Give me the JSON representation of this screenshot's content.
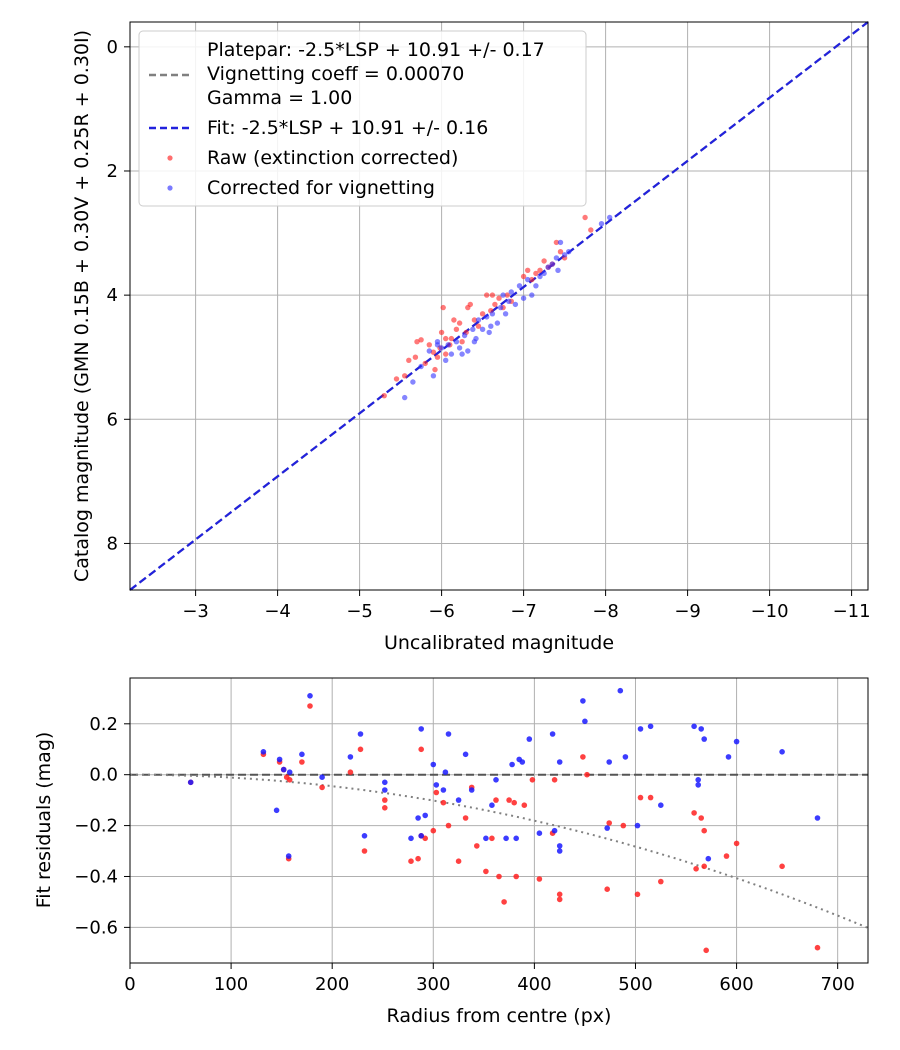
{
  "chart_data": [
    {
      "type": "scatter",
      "xlabel": "Uncalibrated magnitude",
      "ylabel": "Catalog magnitude (GMN 0.15B + 0.30V + 0.25R + 0.30I)",
      "xlim": [
        -2.2,
        -11.2
      ],
      "ylim": [
        8.75,
        -0.4
      ],
      "x_inverted": true,
      "y_inverted": true,
      "grid": true,
      "legend_position": "top-left",
      "xticks": [
        -3,
        -4,
        -5,
        -6,
        -7,
        -8,
        -9,
        -10,
        -11
      ],
      "xtick_labels": [
        "−3",
        "−4",
        "−5",
        "−6",
        "−7",
        "−8",
        "−9",
        "−10",
        "−11"
      ],
      "yticks": [
        0,
        2,
        4,
        6,
        8
      ],
      "ytick_labels": [
        "0",
        "2",
        "4",
        "6",
        "8"
      ],
      "legend": [
        {
          "label": "Platepar: -2.5*LSP + 10.91 +/- 0.17",
          "marker": "none"
        },
        {
          "label": "Vignetting coeff = 0.00070",
          "marker": "dash",
          "color": "#808080"
        },
        {
          "label": "Gamma = 1.00",
          "marker": "none"
        },
        {
          "label": "Fit: -2.5*LSP + 10.91 +/- 0.16",
          "marker": "dash",
          "color": "#2222dd"
        },
        {
          "label": "Raw (extinction corrected)",
          "marker": "dot",
          "color": "#ff2020"
        },
        {
          "label": "Corrected for vignetting",
          "marker": "dot",
          "color": "#3333ff"
        }
      ],
      "lines": [
        {
          "name": "Platepar",
          "x": [
            -2.2,
            -11.2
          ],
          "y": [
            8.75,
            -0.4
          ],
          "color": "#808080",
          "dash": true
        },
        {
          "name": "Fit",
          "x": [
            -2.2,
            -11.2
          ],
          "y": [
            8.75,
            -0.4
          ],
          "color": "#2222dd",
          "dash": true
        }
      ],
      "series": [
        {
          "name": "Raw (extinction corrected)",
          "color": "#ff2020",
          "points": [
            [
              -5.3,
              5.62
            ],
            [
              -5.45,
              5.35
            ],
            [
              -5.55,
              5.3
            ],
            [
              -5.6,
              5.05
            ],
            [
              -5.68,
              5.0
            ],
            [
              -5.7,
              4.75
            ],
            [
              -5.75,
              4.72
            ],
            [
              -5.8,
              5.1
            ],
            [
              -5.85,
              4.8
            ],
            [
              -5.9,
              4.92
            ],
            [
              -5.92,
              5.2
            ],
            [
              -5.98,
              4.85
            ],
            [
              -6.0,
              4.6
            ],
            [
              -6.02,
              4.2
            ],
            [
              -6.05,
              4.95
            ],
            [
              -6.1,
              4.8
            ],
            [
              -6.12,
              4.7
            ],
            [
              -6.15,
              4.4
            ],
            [
              -6.18,
              4.55
            ],
            [
              -6.22,
              4.45
            ],
            [
              -6.25,
              4.75
            ],
            [
              -6.3,
              4.6
            ],
            [
              -6.32,
              4.2
            ],
            [
              -6.35,
              4.15
            ],
            [
              -6.4,
              4.4
            ],
            [
              -6.45,
              4.5
            ],
            [
              -6.5,
              4.3
            ],
            [
              -6.55,
              4.0
            ],
            [
              -6.6,
              4.25
            ],
            [
              -6.62,
              4.0
            ],
            [
              -6.65,
              4.15
            ],
            [
              -6.7,
              4.05
            ],
            [
              -6.75,
              4.2
            ],
            [
              -6.8,
              4.0
            ],
            [
              -6.85,
              4.1
            ],
            [
              -7.0,
              3.7
            ],
            [
              -7.05,
              3.6
            ],
            [
              -7.1,
              3.75
            ],
            [
              -7.15,
              3.65
            ],
            [
              -7.2,
              3.6
            ],
            [
              -7.25,
              3.45
            ],
            [
              -7.3,
              3.55
            ],
            [
              -7.35,
              3.5
            ],
            [
              -7.4,
              3.15
            ],
            [
              -7.45,
              3.3
            ],
            [
              -7.5,
              3.4
            ],
            [
              -7.75,
              2.75
            ],
            [
              -7.82,
              2.95
            ],
            [
              -6.05,
              4.7
            ],
            [
              -5.95,
              5.0
            ]
          ]
        },
        {
          "name": "Corrected for vignetting",
          "color": "#3333ff",
          "points": [
            [
              -5.55,
              5.65
            ],
            [
              -5.65,
              5.4
            ],
            [
              -5.75,
              5.15
            ],
            [
              -5.85,
              4.9
            ],
            [
              -5.9,
              5.3
            ],
            [
              -5.95,
              4.75
            ],
            [
              -6.0,
              4.85
            ],
            [
              -6.05,
              5.05
            ],
            [
              -6.08,
              4.8
            ],
            [
              -6.12,
              4.95
            ],
            [
              -6.18,
              4.75
            ],
            [
              -6.22,
              4.85
            ],
            [
              -6.28,
              4.65
            ],
            [
              -6.32,
              4.9
            ],
            [
              -6.38,
              4.55
            ],
            [
              -6.42,
              4.7
            ],
            [
              -6.45,
              4.4
            ],
            [
              -6.5,
              4.55
            ],
            [
              -6.55,
              4.35
            ],
            [
              -6.58,
              4.6
            ],
            [
              -6.62,
              4.3
            ],
            [
              -6.68,
              4.45
            ],
            [
              -6.72,
              4.2
            ],
            [
              -6.75,
              4.0
            ],
            [
              -6.78,
              4.3
            ],
            [
              -6.82,
              4.1
            ],
            [
              -6.9,
              4.15
            ],
            [
              -7.0,
              4.05
            ],
            [
              -7.1,
              4.0
            ],
            [
              -7.15,
              3.85
            ],
            [
              -7.2,
              3.7
            ],
            [
              -7.25,
              3.65
            ],
            [
              -7.3,
              3.55
            ],
            [
              -7.35,
              3.5
            ],
            [
              -7.4,
              3.4
            ],
            [
              -7.42,
              3.6
            ],
            [
              -7.45,
              3.15
            ],
            [
              -7.5,
              3.35
            ],
            [
              -7.55,
              3.3
            ],
            [
              -7.95,
              2.85
            ],
            [
              -8.05,
              2.75
            ],
            [
              -6.95,
              3.85
            ],
            [
              -6.6,
              4.5
            ],
            [
              -6.25,
              4.95
            ],
            [
              -5.95,
              4.8
            ],
            [
              -6.4,
              4.75
            ],
            [
              -6.85,
              3.95
            ],
            [
              -7.05,
              3.75
            ]
          ]
        }
      ]
    },
    {
      "type": "scatter",
      "xlabel": "Radius from centre (px)",
      "ylabel": "Fit residuals (mag)",
      "xlim": [
        0,
        730
      ],
      "ylim": [
        -0.74,
        0.38
      ],
      "grid": true,
      "xticks": [
        0,
        100,
        200,
        300,
        400,
        500,
        600,
        700
      ],
      "xtick_labels": [
        "0",
        "100",
        "200",
        "300",
        "400",
        "500",
        "600",
        "700"
      ],
      "yticks": [
        -0.6,
        -0.4,
        -0.2,
        0.0,
        0.2
      ],
      "ytick_labels": [
        "−0.6",
        "−0.4",
        "−0.2",
        "0.0",
        "0.2"
      ],
      "lines": [
        {
          "name": "zero",
          "type": "hline",
          "y": 0.0,
          "color": "#555555",
          "dash": true
        },
        {
          "name": "vignetting model",
          "type": "quadratic",
          "coeff": -1.13e-06,
          "color": "#808080",
          "dotted": true
        }
      ],
      "series": [
        {
          "name": "Raw",
          "color": "#ff2020",
          "points": [
            [
              60,
              -0.03
            ],
            [
              132,
              0.08
            ],
            [
              148,
              0.05
            ],
            [
              152,
              0.02
            ],
            [
              155,
              -0.01
            ],
            [
              157,
              -0.33
            ],
            [
              158,
              -0.02
            ],
            [
              170,
              0.05
            ],
            [
              178,
              0.27
            ],
            [
              190,
              -0.05
            ],
            [
              218,
              0.01
            ],
            [
              228,
              0.1
            ],
            [
              232,
              -0.3
            ],
            [
              252,
              -0.1
            ],
            [
              252,
              -0.13
            ],
            [
              278,
              -0.34
            ],
            [
              285,
              -0.33
            ],
            [
              288,
              0.1
            ],
            [
              288,
              -0.24
            ],
            [
              292,
              -0.25
            ],
            [
              300,
              -0.22
            ],
            [
              303,
              -0.07
            ],
            [
              310,
              -0.11
            ],
            [
              315,
              -0.2
            ],
            [
              325,
              -0.34
            ],
            [
              332,
              -0.17
            ],
            [
              338,
              -0.05
            ],
            [
              343,
              -0.28
            ],
            [
              352,
              -0.38
            ],
            [
              358,
              -0.25
            ],
            [
              362,
              -0.1
            ],
            [
              365,
              -0.4
            ],
            [
              370,
              -0.5
            ],
            [
              375,
              -0.1
            ],
            [
              380,
              -0.11
            ],
            [
              382,
              -0.4
            ],
            [
              390,
              -0.12
            ],
            [
              398,
              -0.02
            ],
            [
              405,
              -0.41
            ],
            [
              418,
              -0.23
            ],
            [
              420,
              -0.02
            ],
            [
              425,
              -0.49
            ],
            [
              425,
              -0.47
            ],
            [
              448,
              0.07
            ],
            [
              452,
              0.0
            ],
            [
              472,
              -0.45
            ],
            [
              474,
              -0.19
            ],
            [
              488,
              -0.2
            ],
            [
              502,
              -0.47
            ],
            [
              505,
              -0.09
            ],
            [
              515,
              -0.09
            ],
            [
              525,
              -0.42
            ],
            [
              558,
              -0.15
            ],
            [
              560,
              -0.37
            ],
            [
              565,
              -0.17
            ],
            [
              568,
              -0.22
            ],
            [
              570,
              -0.69
            ],
            [
              590,
              -0.32
            ],
            [
              600,
              -0.27
            ],
            [
              645,
              -0.36
            ],
            [
              680,
              -0.68
            ],
            [
              568,
              -0.36
            ]
          ]
        },
        {
          "name": "Corrected",
          "color": "#1a1aff",
          "points": [
            [
              60,
              -0.03
            ],
            [
              132,
              0.09
            ],
            [
              145,
              -0.14
            ],
            [
              148,
              0.06
            ],
            [
              152,
              0.02
            ],
            [
              157,
              -0.32
            ],
            [
              158,
              0.01
            ],
            [
              170,
              0.08
            ],
            [
              178,
              0.31
            ],
            [
              190,
              -0.01
            ],
            [
              218,
              0.07
            ],
            [
              228,
              0.16
            ],
            [
              232,
              -0.24
            ],
            [
              252,
              -0.03
            ],
            [
              252,
              -0.06
            ],
            [
              278,
              -0.25
            ],
            [
              285,
              -0.17
            ],
            [
              288,
              -0.24
            ],
            [
              288,
              0.18
            ],
            [
              292,
              -0.16
            ],
            [
              300,
              0.04
            ],
            [
              303,
              -0.04
            ],
            [
              310,
              -0.06
            ],
            [
              312,
              0.01
            ],
            [
              315,
              0.16
            ],
            [
              325,
              -0.1
            ],
            [
              332,
              0.08
            ],
            [
              338,
              -0.06
            ],
            [
              352,
              -0.25
            ],
            [
              358,
              -0.12
            ],
            [
              362,
              -0.02
            ],
            [
              372,
              -0.25
            ],
            [
              378,
              0.04
            ],
            [
              382,
              -0.25
            ],
            [
              385,
              0.06
            ],
            [
              388,
              0.05
            ],
            [
              395,
              0.14
            ],
            [
              405,
              -0.23
            ],
            [
              418,
              0.16
            ],
            [
              420,
              -0.22
            ],
            [
              425,
              -0.3
            ],
            [
              425,
              -0.28
            ],
            [
              425,
              0.05
            ],
            [
              448,
              0.29
            ],
            [
              450,
              0.21
            ],
            [
              472,
              -0.21
            ],
            [
              474,
              0.05
            ],
            [
              485,
              0.33
            ],
            [
              490,
              0.07
            ],
            [
              502,
              -0.2
            ],
            [
              505,
              0.18
            ],
            [
              515,
              0.19
            ],
            [
              525,
              -0.12
            ],
            [
              558,
              0.19
            ],
            [
              562,
              -0.02
            ],
            [
              562,
              -0.04
            ],
            [
              565,
              0.18
            ],
            [
              568,
              0.14
            ],
            [
              572,
              -0.33
            ],
            [
              592,
              0.07
            ],
            [
              600,
              0.13
            ],
            [
              645,
              0.09
            ],
            [
              680,
              -0.17
            ]
          ]
        }
      ]
    }
  ]
}
